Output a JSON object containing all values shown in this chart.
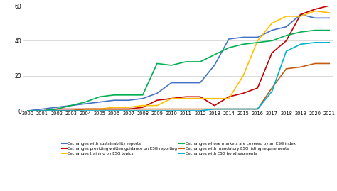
{
  "years": [
    2000,
    2001,
    2002,
    2003,
    2004,
    2005,
    2006,
    2007,
    2008,
    2009,
    2010,
    2011,
    2012,
    2013,
    2014,
    2015,
    2016,
    2017,
    2018,
    2019,
    2020,
    2021
  ],
  "series": {
    "sustainability_reports": [
      0,
      1,
      2,
      3,
      4,
      5,
      6,
      6,
      7,
      10,
      16,
      16,
      16,
      26,
      41,
      42,
      42,
      46,
      48,
      55,
      53,
      53
    ],
    "written_guidance": [
      0,
      0,
      1,
      1,
      1,
      1,
      1,
      1,
      2,
      6,
      7,
      8,
      8,
      3,
      8,
      10,
      13,
      33,
      40,
      55,
      58,
      60
    ],
    "training_esg": [
      0,
      0,
      0,
      0,
      1,
      1,
      2,
      2,
      3,
      3,
      7,
      7,
      7,
      7,
      7,
      20,
      40,
      50,
      54,
      54,
      57,
      56
    ],
    "esg_index": [
      0,
      0,
      1,
      3,
      5,
      8,
      9,
      9,
      9,
      27,
      26,
      28,
      28,
      32,
      36,
      38,
      39,
      40,
      43,
      45,
      46,
      46
    ],
    "mandatory_listing": [
      0,
      0,
      0,
      0,
      1,
      1,
      1,
      1,
      1,
      1,
      1,
      1,
      1,
      1,
      1,
      1,
      1,
      13,
      24,
      25,
      27,
      27
    ],
    "esg_bond": [
      0,
      0,
      0,
      0,
      0,
      0,
      0,
      0,
      0,
      0,
      0,
      0,
      0,
      1,
      1,
      1,
      1,
      11,
      34,
      38,
      39,
      39
    ]
  },
  "colors": {
    "sustainability_reports": "#4472C4",
    "written_guidance": "#C00000",
    "training_esg": "#FFC000",
    "esg_index": "#00B050",
    "mandatory_listing": "#C55A11",
    "esg_bond": "#00B0D0"
  },
  "legend_labels": {
    "sustainability_reports": "Exchanges with sustainability reports",
    "written_guidance": "Exchanges providing written guidance on ESG reporting",
    "training_esg": "Exchanges training on ESG topics",
    "esg_index": "Exchanges whose markets are covered by an ESG index",
    "mandatory_listing": "Exchanges with mandatory ESG listing requirements",
    "esg_bond": "Exchanges with ESG bond segments"
  },
  "legend_col1": [
    "sustainability_reports",
    "training_esg",
    "mandatory_listing"
  ],
  "legend_col2": [
    "written_guidance",
    "esg_index",
    "esg_bond"
  ],
  "ylim": [
    0,
    60
  ],
  "yticks": [
    0,
    20,
    40,
    60
  ],
  "background_color": "#FFFFFF",
  "linewidth": 1.2,
  "grid_color": "#CCCCCC",
  "spine_color": "#AAAAAA",
  "xtick_fontsize": 4.8,
  "ytick_fontsize": 5.5,
  "legend_fontsize": 4.0
}
